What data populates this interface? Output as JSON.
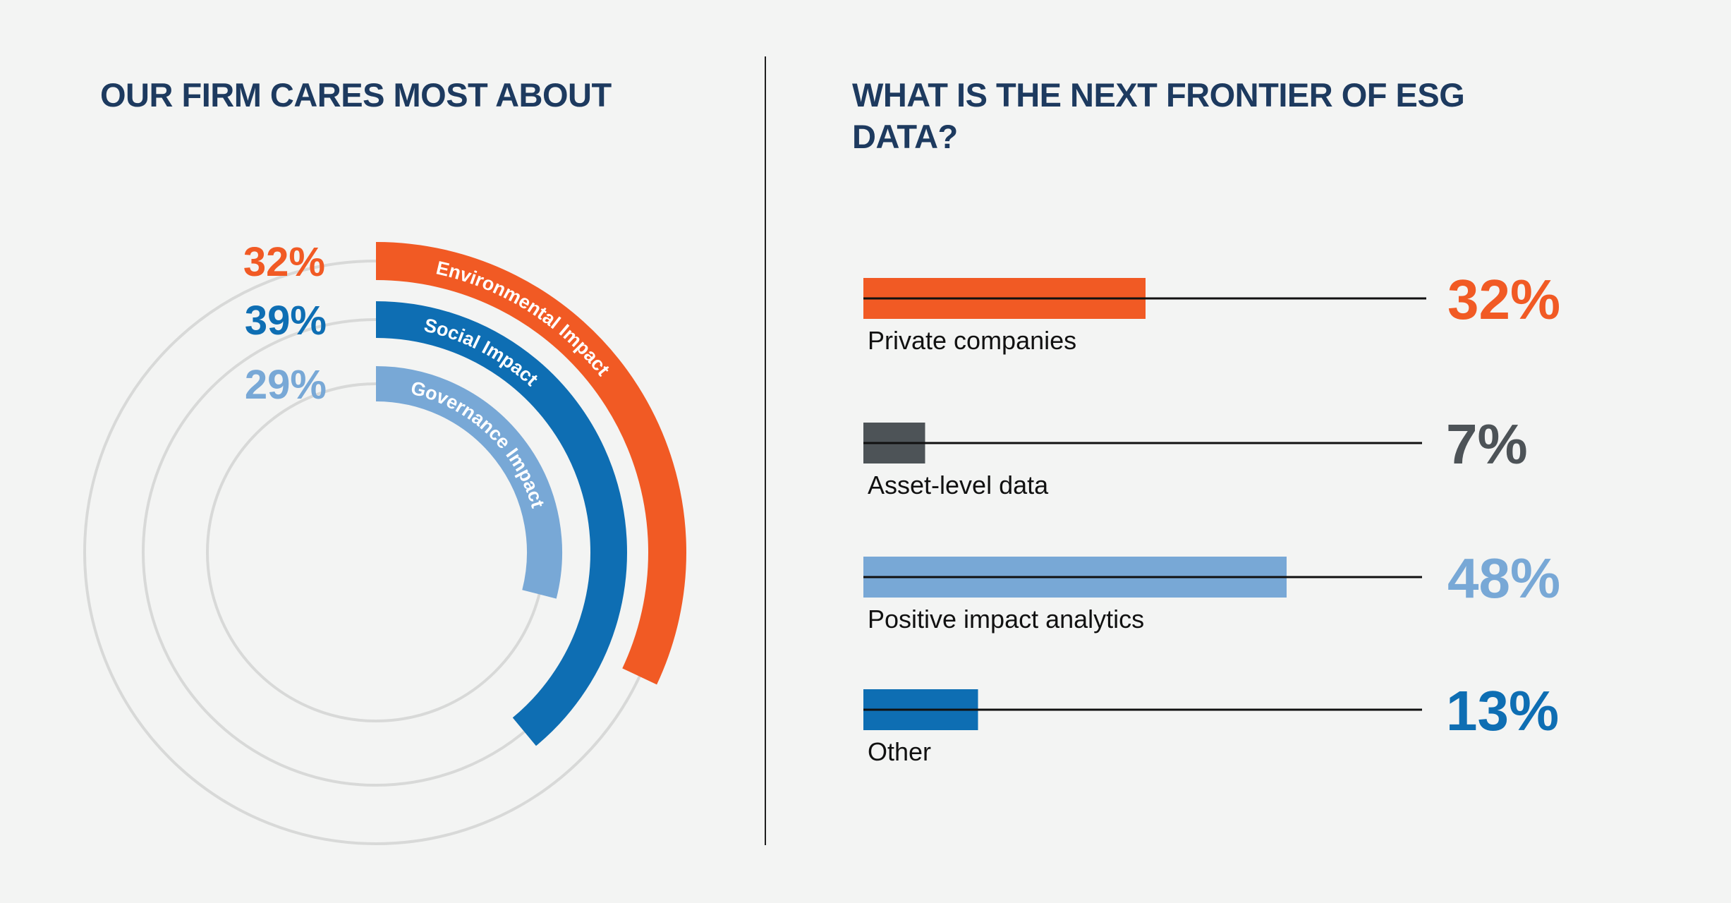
{
  "colors": {
    "background": "#f3f4f3",
    "title": "#1d3a5f",
    "orange": "#f15a24",
    "blue": "#0e6eb3",
    "light_blue": "#78a8d6",
    "dark_gray": "#4d5357",
    "track_gray": "#d8d9d8",
    "line": "#111111"
  },
  "left_panel": {
    "title": "OUR FIRM CARES MOST ABOUT"
  },
  "right_panel": {
    "title": "WHAT IS THE NEXT FRONTIER OF ESG DATA?"
  },
  "chart_data": [
    {
      "type": "radial-bar",
      "title": "OUR FIRM CARES MOST ABOUT",
      "categories": [
        "Environmental Impact",
        "Social Impact",
        "Governance Impact"
      ],
      "values": [
        32,
        39,
        29
      ],
      "value_labels": [
        "32%",
        "39%",
        "29%"
      ],
      "colors": [
        "#f15a24",
        "#0e6eb3",
        "#78a8d6"
      ],
      "unit": "%"
    },
    {
      "type": "bar",
      "orientation": "horizontal",
      "title": "WHAT IS THE NEXT FRONTIER OF ESG DATA?",
      "categories": [
        "Private companies",
        "Asset-level data",
        "Positive impact analytics",
        "Other"
      ],
      "values": [
        32,
        7,
        48,
        13
      ],
      "value_labels": [
        "32%",
        "7%",
        "48%",
        "13%"
      ],
      "colors": [
        "#f15a24",
        "#4d5357",
        "#78a8d6",
        "#0e6eb3"
      ],
      "unit": "%"
    }
  ]
}
